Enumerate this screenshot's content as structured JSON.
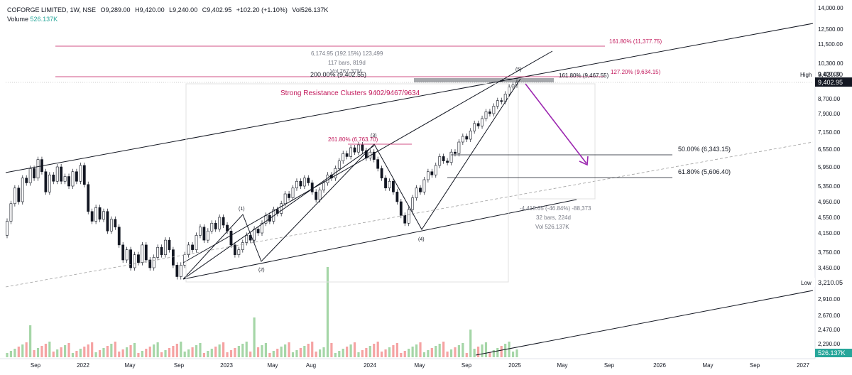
{
  "header": {
    "symbol": "COFORGE LIMITED, 1W, NSE",
    "open": "O9,289.00",
    "high": "H9,420.00",
    "low": "L9,240.00",
    "close": "C9,402.95",
    "change": "+102.20 (+1.10%)",
    "volume": "Vol526.137K",
    "volume_label": "Volume",
    "volume_value": "526.137K"
  },
  "colors": {
    "up": "#26a69a",
    "down": "#ef5350",
    "fib": "#c2185b",
    "arrow": "#9c27b0",
    "line": "#131722"
  },
  "chart_data": {
    "type": "candlestick",
    "y_ticks": [
      "14,000.00",
      "12,500.00",
      "11,500.00",
      "10,300.00",
      "9,400.00",
      "8,700.00",
      "7,900.00",
      "7,150.00",
      "6,550.00",
      "5,950.00",
      "5,350.00",
      "4,950.00",
      "4,550.00",
      "4,150.00",
      "3,750.00",
      "3,450.00",
      "3,210.05",
      "2,910.00",
      "2,670.00",
      "2,470.00",
      "2,290.00"
    ],
    "x_ticks": [
      "Sep",
      "2022",
      "May",
      "Sep",
      "2023",
      "May",
      "Aug",
      "2024",
      "May",
      "Sep",
      "2025",
      "May",
      "Sep",
      "2026",
      "May",
      "Sep",
      "2027"
    ],
    "price_markers": [
      {
        "label": "High",
        "value": "9,420.00"
      },
      {
        "label": "",
        "value": "9,402.95"
      },
      {
        "label": "Low",
        "value": "3,210.05"
      }
    ],
    "volume_marker": "526.137K",
    "annotations": {
      "fib_1618_top": "161.80% (11,377.75)",
      "measure_line1": "6,174.95 (192.15%) 123,499",
      "measure_line2": "117 bars, 819d",
      "measure_line3": "Vol 767.37M",
      "fib_200": "200.00% (9,402.55)",
      "fib_1618_mid": "161.80% (9,467.55)",
      "fib_1272": "127.20% (9,634.15)",
      "resistance": "Strong Resistance Clusters 9402/9467/9634",
      "fib_2618": "261.80% (6,763.70)",
      "fib_50": "50.00% (6,343.15)",
      "fib_618": "61.80% (5,606.40)",
      "drop_line1": "-4,418.65 (-46.84%) -88,373",
      "drop_line2": "32 bars, 224d",
      "drop_line3": "Vol 526.137K"
    },
    "wave_labels": [
      "(1)",
      "(2)",
      "(3)",
      "(4)",
      "(5)"
    ],
    "candles": [
      [
        4100,
        4450
      ],
      [
        4450,
        4900
      ],
      [
        4900,
        5300
      ],
      [
        5300,
        4950
      ],
      [
        4950,
        5600
      ],
      [
        5600,
        5450
      ],
      [
        5450,
        5900
      ],
      [
        5900,
        5600
      ],
      [
        5600,
        6200
      ],
      [
        6200,
        5800
      ],
      [
        5800,
        5200
      ],
      [
        5200,
        5700
      ],
      [
        5700,
        5500
      ],
      [
        5500,
        5950
      ],
      [
        5950,
        5500
      ],
      [
        5500,
        5650
      ],
      [
        5650,
        5350
      ],
      [
        5350,
        5800
      ],
      [
        5800,
        5500
      ],
      [
        5500,
        6000
      ],
      [
        6000,
        5400
      ],
      [
        5400,
        4700
      ],
      [
        4700,
        4450
      ],
      [
        4450,
        4800
      ],
      [
        4800,
        4500
      ],
      [
        4500,
        4700
      ],
      [
        4700,
        4200
      ],
      [
        4200,
        4500
      ],
      [
        4500,
        4300
      ],
      [
        4300,
        3900
      ],
      [
        3900,
        3600
      ],
      [
        3600,
        3800
      ],
      [
        3800,
        3450
      ],
      [
        3450,
        3700
      ],
      [
        3700,
        3550
      ],
      [
        3550,
        3900
      ],
      [
        3900,
        3600
      ],
      [
        3600,
        3450
      ],
      [
        3450,
        3650
      ],
      [
        3650,
        3850
      ],
      [
        3850,
        3700
      ],
      [
        3700,
        4000
      ],
      [
        4000,
        3800
      ],
      [
        3800,
        3500
      ],
      [
        3500,
        3300
      ],
      [
        3300,
        3500
      ],
      [
        3500,
        3700
      ],
      [
        3700,
        3900
      ],
      [
        3900,
        3800
      ],
      [
        3800,
        4100
      ],
      [
        4100,
        4300
      ],
      [
        4300,
        4000
      ],
      [
        4000,
        4200
      ],
      [
        4200,
        4400
      ],
      [
        4400,
        4250
      ],
      [
        4250,
        4550
      ],
      [
        4550,
        4350
      ],
      [
        4350,
        4200
      ],
      [
        4200,
        3900
      ],
      [
        3900,
        3700
      ],
      [
        3700,
        3800
      ],
      [
        3800,
        3950
      ],
      [
        3950,
        4100
      ],
      [
        4100,
        4000
      ],
      [
        4000,
        4250
      ],
      [
        4250,
        4150
      ],
      [
        4150,
        4400
      ],
      [
        4400,
        4600
      ],
      [
        4600,
        4450
      ],
      [
        4450,
        4750
      ],
      [
        4750,
        4650
      ],
      [
        4650,
        4900
      ],
      [
        4900,
        5150
      ],
      [
        5150,
        5050
      ],
      [
        5050,
        5300
      ],
      [
        5300,
        5500
      ],
      [
        5500,
        5350
      ],
      [
        5350,
        5600
      ],
      [
        5600,
        5450
      ],
      [
        5450,
        5200
      ],
      [
        5200,
        5000
      ],
      [
        5000,
        5250
      ],
      [
        5250,
        5450
      ],
      [
        5450,
        5700
      ],
      [
        5700,
        5600
      ],
      [
        5600,
        5900
      ],
      [
        5900,
        6150
      ],
      [
        6150,
        6400
      ],
      [
        6400,
        6300
      ],
      [
        6300,
        6600
      ],
      [
        6600,
        6450
      ],
      [
        6450,
        6700
      ],
      [
        6700,
        6500
      ],
      [
        6500,
        6250
      ],
      [
        6250,
        6450
      ],
      [
        6450,
        6200
      ],
      [
        6200,
        5900
      ],
      [
        5900,
        5600
      ],
      [
        5600,
        5300
      ],
      [
        5300,
        5500
      ],
      [
        5500,
        5200
      ],
      [
        5200,
        4950
      ],
      [
        4950,
        4600
      ],
      [
        4600,
        4400
      ],
      [
        4400,
        4750
      ],
      [
        4750,
        5050
      ],
      [
        5050,
        5300
      ],
      [
        5300,
        5200
      ],
      [
        5200,
        5550
      ],
      [
        5550,
        5800
      ],
      [
        5800,
        5700
      ],
      [
        5700,
        6000
      ],
      [
        6000,
        6300
      ],
      [
        6300,
        6150
      ],
      [
        6150,
        6100
      ],
      [
        6100,
        6450
      ],
      [
        6450,
        6400
      ],
      [
        6400,
        6800
      ],
      [
        6800,
        7000
      ],
      [
        7000,
        6900
      ],
      [
        6900,
        7200
      ],
      [
        7200,
        7500
      ],
      [
        7500,
        7400
      ],
      [
        7400,
        7700
      ],
      [
        7700,
        8000
      ],
      [
        8000,
        7900
      ],
      [
        7900,
        8300
      ],
      [
        8300,
        8600
      ],
      [
        8600,
        8550
      ],
      [
        8550,
        8900
      ],
      [
        8900,
        9200
      ],
      [
        9200,
        9289
      ],
      [
        9289,
        9402.95
      ]
    ]
  }
}
